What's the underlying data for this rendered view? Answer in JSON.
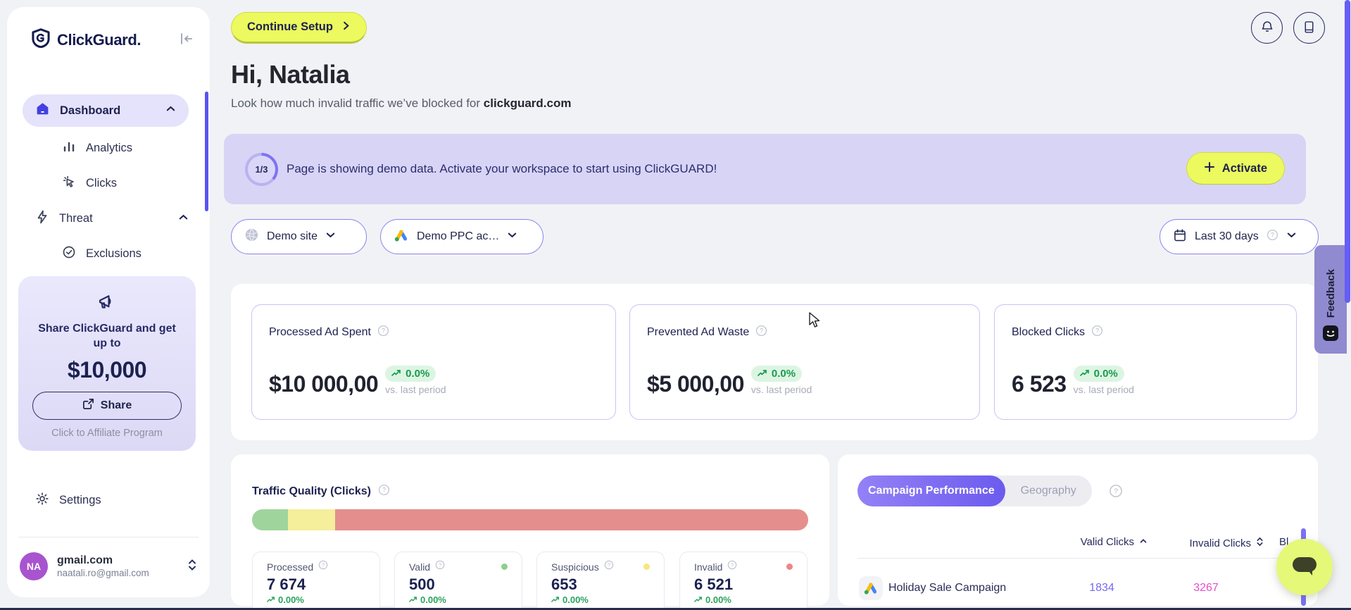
{
  "app": {
    "name": "ClickGuard."
  },
  "sidebar": {
    "items": [
      {
        "label": "Dashboard"
      },
      {
        "label": "Analytics"
      },
      {
        "label": "Clicks"
      },
      {
        "label": "Threat"
      },
      {
        "label": "Exclusions"
      }
    ],
    "promo": {
      "line1": "Share ClickGuard and get up to",
      "amount": "$10,000",
      "share_label": "Share",
      "affiliate_label": "Click to Affiliate Program"
    },
    "settings_label": "Settings",
    "account": {
      "initials": "NA",
      "workspace": "gmail.com",
      "email": "naatali.ro@gmail.com"
    }
  },
  "header": {
    "continue_setup_label": "Continue Setup",
    "greeting": "Hi, Natalia",
    "subtitle_prefix": "Look how much invalid traffic we’ve blocked for ",
    "subtitle_domain": "clickguard.com"
  },
  "banner": {
    "step": "1/3",
    "message": "Page is showing demo data. Activate your workspace to start using ClickGUARD!",
    "activate_label": "Activate"
  },
  "filters": {
    "site": "Demo site",
    "ppc_account": "Demo PPC ac…",
    "date_range": "Last 30 days"
  },
  "metrics": [
    {
      "label": "Processed Ad Spent",
      "value": "$10 000,00",
      "delta": "0.0%",
      "delta_note": "vs. last period"
    },
    {
      "label": "Prevented Ad Waste",
      "value": "$5 000,00",
      "delta": "0.0%",
      "delta_note": "vs. last period"
    },
    {
      "label": "Blocked Clicks",
      "value": "6 523",
      "delta": "0.0%",
      "delta_note": "vs. last period"
    }
  ],
  "traffic_quality": {
    "title": "Traffic Quality (Clicks)",
    "segments": [
      {
        "name": "valid",
        "pct": 6.5,
        "color": "#9fd49c"
      },
      {
        "name": "suspicious",
        "pct": 8.5,
        "color": "#f5ee9b"
      },
      {
        "name": "invalid",
        "pct": 85,
        "color": "#e58e8e"
      }
    ],
    "stats": [
      {
        "label": "Processed",
        "value": "7 674",
        "delta": "0.00%",
        "dot": null
      },
      {
        "label": "Valid",
        "value": "500",
        "delta": "0.00%",
        "dot": "#8fce8a"
      },
      {
        "label": "Suspicious",
        "value": "653",
        "delta": "0.00%",
        "dot": "#f3e97e"
      },
      {
        "label": "Invalid",
        "value": "6 521",
        "delta": "0.00%",
        "dot": "#ef8585"
      }
    ]
  },
  "performance": {
    "tabs": [
      {
        "label": "Campaign Performance",
        "active": true
      },
      {
        "label": "Geography",
        "active": false
      }
    ],
    "columns": [
      {
        "label": "Valid Clicks",
        "sort": "asc"
      },
      {
        "label": "Invalid Clicks",
        "sort": "none"
      },
      {
        "label": "Bl",
        "sort": "none"
      }
    ],
    "rows": [
      {
        "name": "Holiday Sale Campaign",
        "valid_clicks": "1834",
        "invalid_clicks": "3267"
      }
    ]
  },
  "feedback_label": "Feedback",
  "colors": {
    "accent_lime": "#ecf95f",
    "accent_purple": "#6c5bee",
    "banner_bg": "#d8d4f6",
    "positive_green": "#1a9a50",
    "valid_clicks_color": "#7668f2",
    "invalid_clicks_color": "#e24fd0"
  }
}
